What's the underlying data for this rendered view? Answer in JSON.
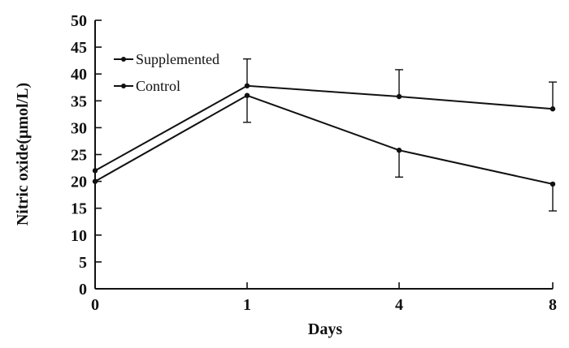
{
  "chart_data": {
    "type": "line",
    "xlabel": "Days",
    "ylabel": "Nitric oxide(μmol/L)",
    "x": [
      "0",
      "1",
      "4",
      "8"
    ],
    "ylim": [
      0,
      50
    ],
    "yticks": [
      "0",
      "5",
      "10",
      "15",
      "20",
      "25",
      "30",
      "35",
      "40",
      "45",
      "50"
    ],
    "grid": false,
    "legend": "top-left",
    "series": [
      {
        "name": "Supplemented",
        "values": [
          22,
          37.8,
          35.8,
          33.5
        ],
        "error": [
          0,
          5,
          5,
          5
        ]
      },
      {
        "name": "Control",
        "values": [
          20,
          36,
          25.8,
          19.5
        ],
        "error": [
          0,
          5,
          5,
          5
        ]
      }
    ]
  }
}
